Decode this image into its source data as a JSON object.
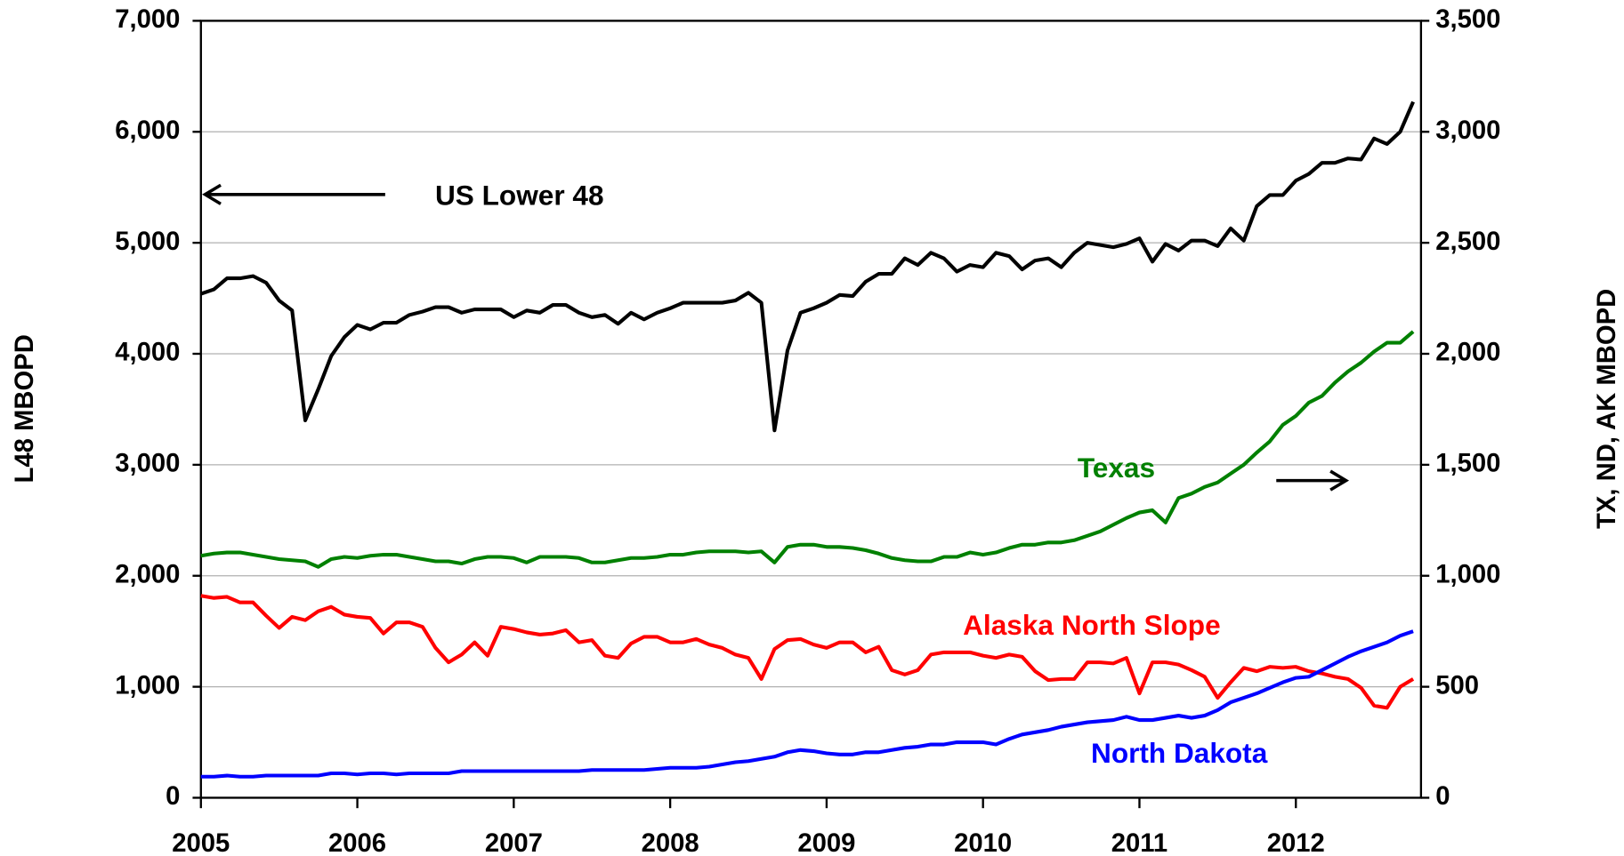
{
  "chart_data": {
    "type": "line",
    "y_label": "L48 MBOPD",
    "y2_label": "TX, ND, AK MBOPD",
    "xlim": [
      2005,
      2012.8
    ],
    "xticks": [
      2005,
      2006,
      2007,
      2008,
      2009,
      2010,
      2011,
      2012
    ],
    "ylim": [
      0,
      7000
    ],
    "yticks": [
      0,
      {
        "value": 1000,
        "label": "1,000"
      },
      {
        "value": 2000,
        "label": "2,000"
      },
      {
        "value": 3000,
        "label": "3,000"
      },
      {
        "value": 4000,
        "label": "4,000"
      },
      {
        "value": 5000,
        "label": "5,000"
      },
      {
        "value": 6000,
        "label": "6,000"
      },
      {
        "value": 7000,
        "label": "7,000"
      }
    ],
    "y2lim": [
      0,
      3500
    ],
    "y2ticks": [
      0,
      500,
      {
        "value": 1000,
        "label": "1,000"
      },
      {
        "value": 1500,
        "label": "1,500"
      },
      {
        "value": 2000,
        "label": "2,000"
      },
      {
        "value": 2500,
        "label": "2,500"
      },
      {
        "value": 3000,
        "label": "3,000"
      },
      {
        "value": 3500,
        "label": "3,500"
      }
    ],
    "grid": true,
    "x": [
      2005.0,
      2005.083,
      2005.167,
      2005.25,
      2005.333,
      2005.417,
      2005.5,
      2005.583,
      2005.667,
      2005.75,
      2005.833,
      2005.917,
      2006.0,
      2006.083,
      2006.167,
      2006.25,
      2006.333,
      2006.417,
      2006.5,
      2006.583,
      2006.667,
      2006.75,
      2006.833,
      2006.917,
      2007.0,
      2007.083,
      2007.167,
      2007.25,
      2007.333,
      2007.417,
      2007.5,
      2007.583,
      2007.667,
      2007.75,
      2007.833,
      2007.917,
      2008.0,
      2008.083,
      2008.167,
      2008.25,
      2008.333,
      2008.417,
      2008.5,
      2008.583,
      2008.667,
      2008.75,
      2008.833,
      2008.917,
      2009.0,
      2009.083,
      2009.167,
      2009.25,
      2009.333,
      2009.417,
      2009.5,
      2009.583,
      2009.667,
      2009.75,
      2009.833,
      2009.917,
      2010.0,
      2010.083,
      2010.167,
      2010.25,
      2010.333,
      2010.417,
      2010.5,
      2010.583,
      2010.667,
      2010.75,
      2010.833,
      2010.917,
      2011.0,
      2011.083,
      2011.167,
      2011.25,
      2011.333,
      2011.417,
      2011.5,
      2011.583,
      2011.667,
      2011.75,
      2011.833,
      2011.917,
      2012.0,
      2012.083,
      2012.167,
      2012.25,
      2012.333,
      2012.417,
      2012.5,
      2012.583,
      2012.667,
      2012.75
    ],
    "series": [
      {
        "name": "US Lower 48",
        "color": "#000000",
        "axis": "y",
        "values": [
          4540,
          4580,
          4680,
          4680,
          4700,
          4640,
          4480,
          4390,
          3400,
          3680,
          3980,
          4150,
          4260,
          4220,
          4280,
          4280,
          4350,
          4380,
          4420,
          4420,
          4370,
          4400,
          4400,
          4400,
          4330,
          4390,
          4370,
          4440,
          4440,
          4370,
          4330,
          4350,
          4270,
          4370,
          4310,
          4370,
          4410,
          4460,
          4460,
          4460,
          4460,
          4480,
          4550,
          4460,
          3310,
          4030,
          4370,
          4410,
          4460,
          4530,
          4520,
          4650,
          4720,
          4720,
          4860,
          4800,
          4910,
          4860,
          4740,
          4800,
          4780,
          4910,
          4880,
          4760,
          4840,
          4860,
          4780,
          4910,
          5000,
          4980,
          4960,
          4990,
          5040,
          4830,
          4990,
          4930,
          5020,
          5020,
          4970,
          5130,
          5020,
          5330,
          5430,
          5430,
          5560,
          5620,
          5720,
          5720,
          5760,
          5750,
          5940,
          5890,
          6000,
          6270
        ]
      },
      {
        "name": "Texas",
        "color": "#008000",
        "axis": "y2",
        "values": [
          1090,
          1100,
          1105,
          1105,
          1095,
          1085,
          1075,
          1070,
          1065,
          1040,
          1075,
          1085,
          1080,
          1090,
          1095,
          1095,
          1085,
          1075,
          1065,
          1065,
          1055,
          1075,
          1085,
          1085,
          1080,
          1060,
          1085,
          1085,
          1085,
          1080,
          1060,
          1060,
          1070,
          1080,
          1080,
          1085,
          1095,
          1095,
          1105,
          1110,
          1110,
          1110,
          1105,
          1110,
          1060,
          1130,
          1140,
          1140,
          1130,
          1130,
          1125,
          1115,
          1100,
          1080,
          1070,
          1065,
          1065,
          1085,
          1085,
          1105,
          1095,
          1105,
          1125,
          1140,
          1140,
          1150,
          1150,
          1160,
          1180,
          1200,
          1230,
          1260,
          1285,
          1295,
          1240,
          1350,
          1370,
          1400,
          1420,
          1460,
          1500,
          1555,
          1605,
          1680,
          1720,
          1780,
          1810,
          1870,
          1920,
          1960,
          2010,
          2050,
          2050,
          2100
        ]
      },
      {
        "name": "Alaska North Slope",
        "color": "#ff0000",
        "axis": "y2",
        "values": [
          910,
          900,
          905,
          880,
          880,
          820,
          765,
          815,
          800,
          840,
          860,
          825,
          815,
          810,
          740,
          790,
          790,
          770,
          675,
          610,
          645,
          700,
          640,
          770,
          760,
          745,
          735,
          740,
          755,
          700,
          710,
          640,
          630,
          695,
          725,
          725,
          700,
          700,
          715,
          690,
          675,
          645,
          630,
          535,
          670,
          710,
          715,
          690,
          675,
          700,
          700,
          655,
          680,
          575,
          555,
          575,
          645,
          655,
          655,
          655,
          640,
          630,
          645,
          635,
          570,
          530,
          535,
          535,
          610,
          610,
          605,
          630,
          470,
          610,
          610,
          600,
          575,
          545,
          450,
          520,
          585,
          570,
          590,
          585,
          590,
          570,
          560,
          545,
          535,
          495,
          415,
          405,
          500,
          535
        ]
      },
      {
        "name": "North Dakota",
        "color": "#0000ff",
        "axis": "y2",
        "values": [
          95,
          95,
          100,
          95,
          95,
          100,
          100,
          100,
          100,
          100,
          110,
          110,
          105,
          110,
          110,
          105,
          110,
          110,
          110,
          110,
          120,
          120,
          120,
          120,
          120,
          120,
          120,
          120,
          120,
          120,
          125,
          125,
          125,
          125,
          125,
          130,
          135,
          135,
          135,
          140,
          150,
          160,
          165,
          175,
          185,
          205,
          215,
          210,
          200,
          195,
          195,
          205,
          205,
          215,
          225,
          230,
          240,
          240,
          250,
          250,
          250,
          240,
          265,
          285,
          295,
          305,
          320,
          330,
          340,
          345,
          350,
          365,
          350,
          350,
          360,
          370,
          360,
          370,
          395,
          430,
          450,
          470,
          495,
          520,
          540,
          545,
          575,
          605,
          635,
          660,
          680,
          700,
          730,
          750
        ]
      }
    ]
  }
}
